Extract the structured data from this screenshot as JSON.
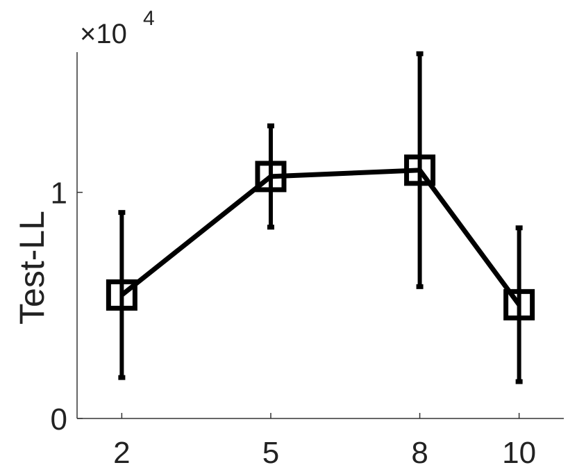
{
  "chart_data": {
    "type": "errorbar",
    "y_label": "Test-LL",
    "y_scale_base": "×10",
    "y_scale_exponent": "4",
    "x": [
      2,
      5,
      8,
      10
    ],
    "series": [
      {
        "color": "#000000",
        "values": [
          0.546,
          1.07,
          1.098,
          0.503
        ],
        "errors": [
          0.365,
          0.224,
          0.515,
          0.34
        ]
      }
    ],
    "xlim": [
      1.1,
      10.9
    ],
    "xticks": [
      2,
      5,
      8,
      10
    ],
    "ylim": [
      0,
      1.62
    ],
    "yticks": [
      0,
      1
    ],
    "grid": false
  }
}
